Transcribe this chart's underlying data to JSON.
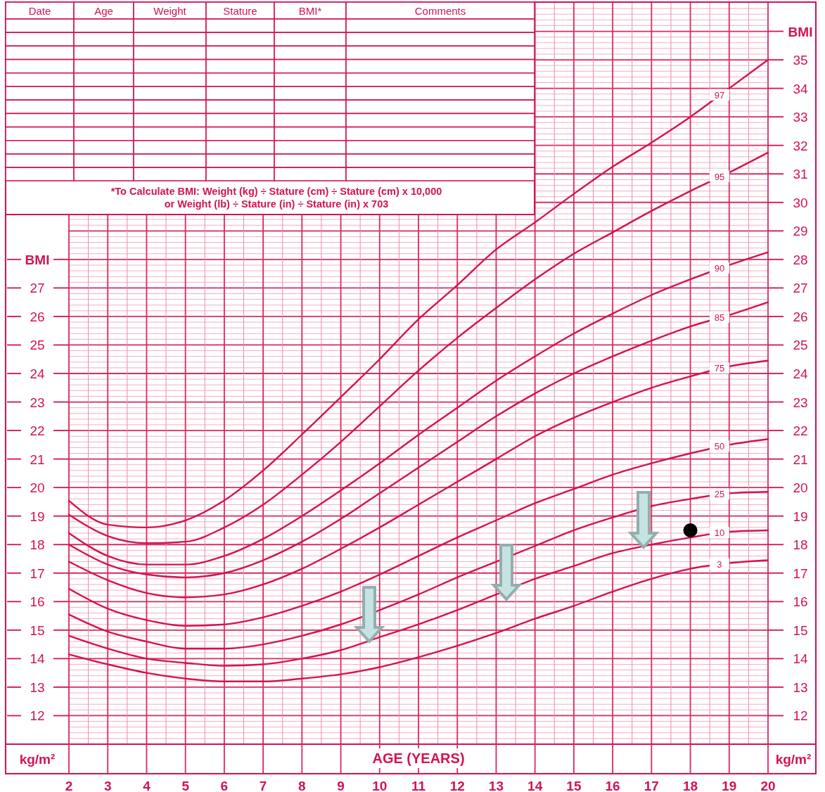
{
  "chart_data": {
    "type": "line",
    "xlabel": "AGE (YEARS)",
    "ylabel": "BMI",
    "y2label": "BMI",
    "x": [
      2,
      3,
      4,
      5,
      6,
      7,
      8,
      9,
      10,
      11,
      12,
      13,
      14,
      15,
      16,
      17,
      18,
      19,
      20
    ],
    "xlim": [
      2,
      20
    ],
    "xticks": [
      2,
      {
        "value": 2.5,
        "label": null
      },
      3,
      {
        "value": 3.5,
        "label": null
      },
      4,
      {
        "value": 4.5,
        "label": null
      },
      5,
      {
        "value": 5.5,
        "label": null
      },
      6,
      {
        "value": 6.5,
        "label": null
      },
      7,
      {
        "value": 7.5,
        "label": null
      },
      8,
      {
        "value": 8.5,
        "label": null
      },
      9,
      {
        "value": 9.5,
        "label": null
      },
      10,
      {
        "value": 10.5,
        "label": null
      },
      11,
      {
        "value": 11.5,
        "label": null
      },
      12,
      {
        "value": 12.5,
        "label": null
      },
      13,
      {
        "value": 13.5,
        "label": null
      },
      14,
      {
        "value": 14.5,
        "label": null
      },
      15,
      {
        "value": 15.5,
        "label": null
      },
      16,
      {
        "value": 16.5,
        "label": null
      },
      17,
      {
        "value": 17.5,
        "label": null
      },
      18,
      {
        "value": 18.5,
        "label": null
      },
      19,
      {
        "value": 19.5,
        "label": null
      },
      20
    ],
    "ylim": [
      11,
      37
    ],
    "yticks": [
      12,
      13,
      14,
      15,
      16,
      17,
      18,
      19,
      20,
      21,
      22,
      23,
      24,
      25,
      26,
      27
    ],
    "y2lim": [
      11,
      37
    ],
    "y2ticks": [
      {
        "value": 11.2,
        "label": null
      },
      {
        "value": 11.4,
        "label": null
      },
      {
        "value": 11.6,
        "label": null
      },
      {
        "value": 11.8,
        "label": null
      },
      12,
      {
        "value": 12.2,
        "label": null
      },
      {
        "value": 12.4,
        "label": null
      },
      {
        "value": 12.6,
        "label": null
      },
      {
        "value": 12.8,
        "label": null
      },
      13,
      {
        "value": 13.2,
        "label": null
      },
      {
        "value": 13.4,
        "label": null
      },
      {
        "value": 13.6,
        "label": null
      },
      {
        "value": 13.8,
        "label": null
      },
      14,
      {
        "value": 14.2,
        "label": null
      },
      {
        "value": 14.4,
        "label": null
      },
      {
        "value": 14.6,
        "label": null
      },
      {
        "value": 14.8,
        "label": null
      },
      15,
      {
        "value": 15.2,
        "label": null
      },
      {
        "value": 15.4,
        "label": null
      },
      {
        "value": 15.6,
        "label": null
      },
      {
        "value": 15.8,
        "label": null
      },
      16,
      {
        "value": 16.2,
        "label": null
      },
      {
        "value": 16.4,
        "label": null
      },
      {
        "value": 16.6,
        "label": null
      },
      {
        "value": 16.8,
        "label": null
      },
      17,
      {
        "value": 17.2,
        "label": null
      },
      {
        "value": 17.4,
        "label": null
      },
      {
        "value": 17.6,
        "label": null
      },
      {
        "value": 17.8,
        "label": null
      },
      18,
      {
        "value": 18.2,
        "label": null
      },
      {
        "value": 18.4,
        "label": null
      },
      {
        "value": 18.6,
        "label": null
      },
      {
        "value": 18.8,
        "label": null
      },
      19,
      {
        "value": 19.2,
        "label": null
      },
      {
        "value": 19.4,
        "label": null
      },
      {
        "value": 19.6,
        "label": null
      },
      {
        "value": 19.8,
        "label": null
      },
      20,
      {
        "value": 20.2,
        "label": null
      },
      {
        "value": 20.4,
        "label": null
      },
      {
        "value": 20.6,
        "label": null
      },
      {
        "value": 20.8,
        "label": null
      },
      21,
      {
        "value": 21.2,
        "label": null
      },
      {
        "value": 21.4,
        "label": null
      },
      {
        "value": 21.6,
        "label": null
      },
      {
        "value": 21.8,
        "label": null
      },
      22,
      {
        "value": 22.2,
        "label": null
      },
      {
        "value": 22.4,
        "label": null
      },
      {
        "value": 22.6,
        "label": null
      },
      {
        "value": 22.8,
        "label": null
      },
      23,
      {
        "value": 23.2,
        "label": null
      },
      {
        "value": 23.4,
        "label": null
      },
      {
        "value": 23.6,
        "label": null
      },
      {
        "value": 23.8,
        "label": null
      },
      24,
      {
        "value": 24.2,
        "label": null
      },
      {
        "value": 24.4,
        "label": null
      },
      {
        "value": 24.6,
        "label": null
      },
      {
        "value": 24.8,
        "label": null
      },
      25,
      {
        "value": 25.2,
        "label": null
      },
      {
        "value": 25.4,
        "label": null
      },
      {
        "value": 25.6,
        "label": null
      },
      {
        "value": 25.8,
        "label": null
      },
      26,
      {
        "value": 26.2,
        "label": null
      },
      {
        "value": 26.4,
        "label": null
      },
      {
        "value": 26.6,
        "label": null
      },
      {
        "value": 26.8,
        "label": null
      },
      27,
      {
        "value": 27.2,
        "label": null
      },
      {
        "value": 27.4,
        "label": null
      },
      {
        "value": 27.6,
        "label": null
      },
      {
        "value": 27.8,
        "label": null
      },
      28,
      {
        "value": 28.2,
        "label": null
      },
      {
        "value": 28.4,
        "label": null
      },
      {
        "value": 28.6,
        "label": null
      },
      {
        "value": 28.8,
        "label": null
      },
      29,
      {
        "value": 29.2,
        "label": null
      },
      {
        "value": 29.4,
        "label": null
      },
      {
        "value": 29.6,
        "label": null
      },
      {
        "value": 29.8,
        "label": null
      },
      30,
      {
        "value": 30.2,
        "label": null
      },
      {
        "value": 30.4,
        "label": null
      },
      {
        "value": 30.6,
        "label": null
      },
      {
        "value": 30.8,
        "label": null
      },
      31,
      {
        "value": 31.2,
        "label": null
      },
      {
        "value": 31.4,
        "label": null
      },
      {
        "value": 31.6,
        "label": null
      },
      {
        "value": 31.8,
        "label": null
      },
      32,
      {
        "value": 32.2,
        "label": null
      },
      {
        "value": 32.4,
        "label": null
      },
      {
        "value": 32.6,
        "label": null
      },
      {
        "value": 32.8,
        "label": null
      },
      33,
      {
        "value": 33.2,
        "label": null
      },
      {
        "value": 33.4,
        "label": null
      },
      {
        "value": 33.6,
        "label": null
      },
      {
        "value": 33.8,
        "label": null
      },
      34,
      {
        "value": 34.2,
        "label": null
      },
      {
        "value": 34.4,
        "label": null
      },
      {
        "value": 34.6,
        "label": null
      },
      {
        "value": 34.8,
        "label": null
      },
      35,
      {
        "value": 35.2,
        "label": null
      },
      {
        "value": 35.4,
        "label": null
      },
      {
        "value": 35.6,
        "label": null
      },
      {
        "value": 35.8,
        "label": null
      },
      {
        "value": 36,
        "label": null
      },
      {
        "value": 36.2,
        "label": null
      },
      {
        "value": 36.4,
        "label": null
      },
      {
        "value": 36.6,
        "label": null
      },
      {
        "value": 36.8,
        "label": null
      }
    ],
    "grid": true,
    "line_style": "solid",
    "series": [
      {
        "name": "97",
        "color": "#d3134f",
        "values": [
          19.54,
          18.7,
          18.6,
          18.85,
          19.55,
          20.6,
          21.86,
          23.17,
          24.5,
          25.9,
          27.1,
          28.35,
          29.3,
          30.3,
          31.25,
          32.1,
          33.0,
          34.0,
          35.0
        ]
      },
      {
        "name": "95",
        "color": "#d3134f",
        "values": [
          19.05,
          18.3,
          18.05,
          18.1,
          18.6,
          19.4,
          20.45,
          21.6,
          22.85,
          24.1,
          25.25,
          26.3,
          27.3,
          28.2,
          28.95,
          29.7,
          30.4,
          31.05,
          31.75
        ]
      },
      {
        "name": "90",
        "color": "#d3134f",
        "values": [
          18.4,
          17.6,
          17.3,
          17.3,
          17.6,
          18.2,
          19.0,
          19.9,
          20.85,
          21.85,
          22.8,
          23.75,
          24.6,
          25.4,
          26.1,
          26.75,
          27.3,
          27.8,
          28.25
        ]
      },
      {
        "name": "85",
        "color": "#d3134f",
        "values": [
          18.0,
          17.3,
          16.95,
          16.85,
          17.0,
          17.45,
          18.1,
          18.9,
          19.8,
          20.7,
          21.6,
          22.5,
          23.3,
          24.0,
          24.6,
          25.15,
          25.65,
          26.05,
          26.5
        ]
      },
      {
        "name": "75",
        "color": "#d3134f",
        "values": [
          17.4,
          16.75,
          16.3,
          16.15,
          16.25,
          16.6,
          17.15,
          17.85,
          18.6,
          19.4,
          20.2,
          21.0,
          21.8,
          22.45,
          23.0,
          23.5,
          23.9,
          24.25,
          24.45
        ]
      },
      {
        "name": "50",
        "color": "#d3134f",
        "values": [
          16.45,
          15.75,
          15.35,
          15.15,
          15.2,
          15.45,
          15.85,
          16.35,
          16.95,
          17.6,
          18.25,
          18.85,
          19.45,
          19.95,
          20.45,
          20.85,
          21.2,
          21.5,
          21.7
        ]
      },
      {
        "name": "25",
        "color": "#d3134f",
        "values": [
          15.55,
          14.95,
          14.6,
          14.35,
          14.35,
          14.5,
          14.8,
          15.2,
          15.7,
          16.25,
          16.85,
          17.4,
          17.95,
          18.5,
          18.95,
          19.35,
          19.6,
          19.8,
          19.85
        ]
      },
      {
        "name": "10",
        "color": "#d3134f",
        "values": [
          14.8,
          14.35,
          14.0,
          13.85,
          13.75,
          13.8,
          14.0,
          14.3,
          14.75,
          15.2,
          15.7,
          16.25,
          16.8,
          17.25,
          17.7,
          18.0,
          18.25,
          18.45,
          18.5
        ]
      },
      {
        "name": "3",
        "color": "#d3134f",
        "values": [
          14.15,
          13.8,
          13.5,
          13.3,
          13.2,
          13.2,
          13.3,
          13.45,
          13.7,
          14.05,
          14.45,
          14.9,
          15.4,
          15.85,
          16.35,
          16.8,
          17.15,
          17.35,
          17.45
        ]
      },
      {
        "type": "scatter",
        "color": "#000000",
        "marker": "circle",
        "x": [
          18
        ],
        "values": [
          18.5
        ]
      }
    ],
    "annotations": [
      "Date",
      "Age",
      "Weight",
      "Stature",
      "BMI*",
      "Comments",
      "*To Calculate BMI: Weight (kg) ÷ Stature (cm) ÷ Stature (cm) x 10,000",
      "or Weight (lb) ÷ Stature (in) ÷ Stature (in) x 703",
      "kg/m²",
      "kg/m²"
    ]
  }
}
